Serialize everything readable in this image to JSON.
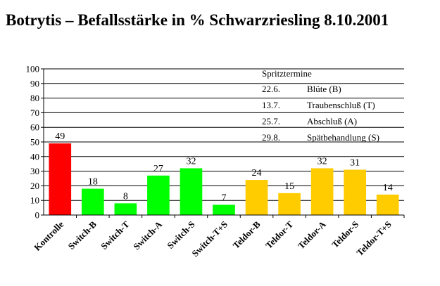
{
  "chart_data": {
    "type": "bar",
    "title": "Botrytis – Befallsstärke in % Schwarzriesling  8.10.2001",
    "xlabel": "",
    "ylabel": "",
    "ylim": [
      0,
      100
    ],
    "yticks": [
      0,
      10,
      20,
      30,
      40,
      50,
      60,
      70,
      80,
      90,
      100
    ],
    "grid": true,
    "categories": [
      "Kontrolle",
      "Switch-B",
      "Switch-T",
      "Switch-A",
      "Switch-S",
      "Switch-T+S",
      "Teldor-B",
      "Teldor-T",
      "Teldor-A",
      "Teldor-S",
      "Teldor-T+S"
    ],
    "values": [
      49,
      18,
      8,
      27,
      32,
      7,
      24,
      15,
      32,
      31,
      14
    ],
    "data_labels": [
      "49",
      "18",
      "8",
      "27",
      "32",
      "7",
      "24",
      "15",
      "32",
      "31",
      "14"
    ],
    "bar_colors": [
      "#ff0000",
      "#00ff00",
      "#00ff00",
      "#00ff00",
      "#00ff00",
      "#00ff00",
      "#ffcc00",
      "#ffcc00",
      "#ffcc00",
      "#ffcc00",
      "#ffcc00"
    ],
    "legend_box": {
      "heading": "Spritztermine",
      "rows": [
        {
          "date": "22.6.",
          "text": "Blüte (B)"
        },
        {
          "date": "13.7.",
          "text": "Traubenschluß (T)"
        },
        {
          "date": "25.7.",
          "text": "Abschluß (A)"
        },
        {
          "date": "29.8.",
          "text": "Spätbehandlung (S)"
        }
      ]
    }
  }
}
